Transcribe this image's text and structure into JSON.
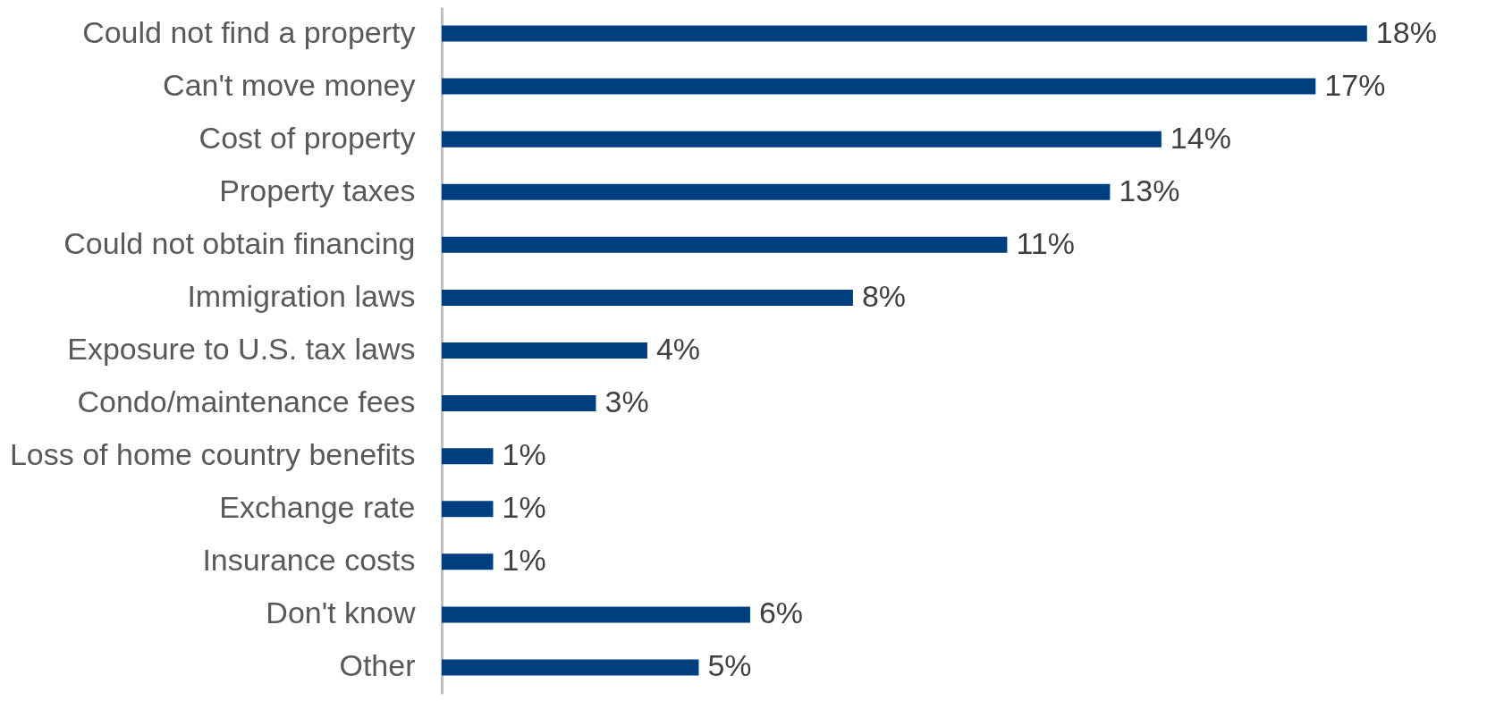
{
  "chart_data": {
    "type": "bar",
    "orientation": "horizontal",
    "categories": [
      "Could not find a property",
      "Can't move money",
      "Cost of property",
      "Property taxes",
      "Could not obtain financing",
      "Immigration laws",
      "Exposure to U.S. tax laws",
      "Condo/maintenance fees",
      "Loss of home country benefits",
      "Exchange rate",
      "Insurance costs",
      "Don't know",
      "Other"
    ],
    "values": [
      18,
      17,
      14,
      13,
      11,
      8,
      4,
      3,
      1,
      1,
      1,
      6,
      5
    ],
    "value_labels": [
      "18%",
      "17%",
      "14%",
      "13%",
      "11%",
      "8%",
      "4%",
      "3%",
      "1%",
      "1%",
      "1%",
      "6%",
      "5%"
    ],
    "color": "#003f7f",
    "grid": false
  }
}
